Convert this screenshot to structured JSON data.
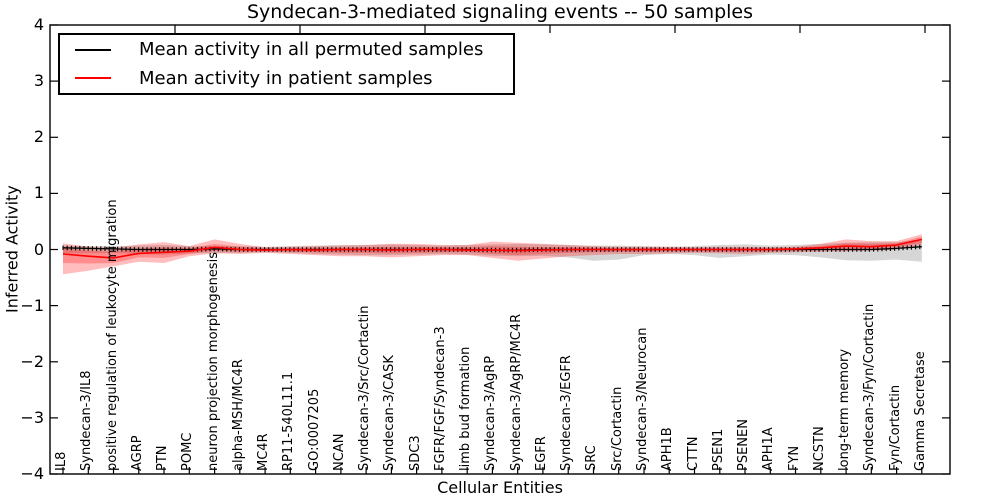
{
  "title": "Syndecan-3-mediated signaling events -- 50 samples",
  "legend": {
    "items": [
      {
        "label": "Mean activity in all permuted samples",
        "color": "#000000"
      },
      {
        "label": "Mean activity in patient samples",
        "color": "#ff0000"
      }
    ]
  },
  "axes": {
    "xlabel": "Cellular Entities",
    "ylabel": "Inferred Activity",
    "ytick_labels": [
      "4",
      "3",
      "2",
      "1",
      "0",
      "−1",
      "−2",
      "−3",
      "−4"
    ],
    "ytick_values": [
      4,
      3,
      2,
      1,
      0,
      -1,
      -2,
      -3,
      -4
    ]
  },
  "chart_data": {
    "type": "line",
    "title": "Syndecan-3-mediated signaling events -- 50 samples",
    "xlabel": "Cellular Entities",
    "ylabel": "Inferred Activity",
    "ylim": [
      -4,
      4
    ],
    "grid": false,
    "legend_position": "upper left",
    "x_tick_rotation": 90,
    "categories": [
      "IL8",
      "Syndecan-3/IL8",
      "positive regulation of leukocyte migration",
      "AGRP",
      "PTN",
      "POMC",
      "neuron projection morphogenesis",
      "alpha-MSH/MC4R",
      "MC4R",
      "RP11-540L11.1",
      "GO:0007205",
      "NCAN",
      "Syndecan-3/Src/Cortactin",
      "Syndecan-3/CASK",
      "SDC3",
      "FGFR/FGF/Syndecan-3",
      "limb bud formation",
      "Syndecan-3/AgRP",
      "Syndecan-3/AgRP/MC4R",
      "EGFR",
      "Syndecan-3/EGFR",
      "SRC",
      "Src/Cortactin",
      "Syndecan-3/Neurocan",
      "APH1B",
      "CTTN",
      "PSEN1",
      "PSENEN",
      "APH1A",
      "FYN",
      "NCSTN",
      "long-term memory",
      "Syndecan-3/Fyn/Cortactin",
      "Fyn/Cortactin",
      "Gamma Secretase"
    ],
    "series": [
      {
        "name": "Mean activity in all permuted samples",
        "color": "#000000",
        "values": [
          0.03,
          0.02,
          0.01,
          0.0,
          0.0,
          0.0,
          0.01,
          0.0,
          0.0,
          0.0,
          0.0,
          0.0,
          0.0,
          0.0,
          0.0,
          0.0,
          0.0,
          -0.01,
          -0.01,
          0.0,
          0.0,
          0.0,
          0.0,
          0.0,
          0.0,
          0.0,
          0.0,
          0.0,
          0.0,
          0.0,
          0.0,
          0.0,
          0.0,
          0.02,
          0.05
        ]
      },
      {
        "name": "Mean activity in patient samples",
        "color": "#ff0000",
        "values": [
          -0.08,
          -0.12,
          -0.15,
          -0.07,
          -0.05,
          -0.03,
          0.04,
          0.0,
          -0.01,
          0.0,
          -0.01,
          0.0,
          0.0,
          -0.01,
          0.0,
          0.0,
          -0.01,
          -0.01,
          -0.02,
          -0.01,
          0.0,
          0.0,
          0.0,
          0.0,
          0.0,
          0.0,
          0.0,
          0.0,
          0.0,
          0.01,
          0.03,
          0.06,
          0.05,
          0.08,
          0.18
        ]
      }
    ],
    "bands": [
      {
        "name": "permuted-samples-spread",
        "color": "#808080",
        "opacity": 0.32,
        "upper": [
          0.07,
          0.06,
          0.06,
          0.07,
          0.08,
          0.06,
          0.06,
          0.06,
          0.05,
          0.06,
          0.07,
          0.08,
          0.08,
          0.09,
          0.08,
          0.07,
          0.08,
          0.09,
          0.1,
          0.09,
          0.08,
          0.07,
          0.07,
          0.06,
          0.05,
          0.06,
          0.08,
          0.09,
          0.07,
          0.08,
          0.1,
          0.12,
          0.13,
          0.13,
          0.17
        ],
        "lower": [
          -0.07,
          -0.07,
          -0.06,
          -0.08,
          -0.09,
          -0.07,
          -0.06,
          -0.06,
          -0.05,
          -0.06,
          -0.08,
          -0.09,
          -0.1,
          -0.1,
          -0.09,
          -0.08,
          -0.09,
          -0.11,
          -0.12,
          -0.11,
          -0.14,
          -0.2,
          -0.18,
          -0.1,
          -0.08,
          -0.1,
          -0.15,
          -0.12,
          -0.09,
          -0.1,
          -0.14,
          -0.19,
          -0.2,
          -0.18,
          -0.22
        ]
      },
      {
        "name": "patient-samples-spread-outer",
        "color": "#ff0000",
        "opacity": 0.26,
        "upper": [
          0.11,
          0.05,
          0.03,
          0.09,
          0.13,
          0.06,
          0.18,
          0.1,
          0.04,
          0.05,
          0.06,
          0.07,
          0.08,
          0.1,
          0.1,
          0.08,
          0.08,
          0.14,
          0.12,
          0.1,
          0.08,
          0.06,
          0.05,
          0.05,
          0.05,
          0.04,
          0.05,
          0.05,
          0.04,
          0.05,
          0.1,
          0.18,
          0.15,
          0.15,
          0.27
        ],
        "lower": [
          -0.44,
          -0.38,
          -0.3,
          -0.22,
          -0.24,
          -0.12,
          -0.07,
          -0.08,
          -0.06,
          -0.08,
          -0.1,
          -0.12,
          -0.12,
          -0.14,
          -0.12,
          -0.1,
          -0.1,
          -0.15,
          -0.2,
          -0.16,
          -0.12,
          -0.1,
          -0.08,
          -0.08,
          -0.07,
          -0.06,
          -0.07,
          -0.08,
          -0.06,
          -0.05,
          -0.04,
          -0.03,
          -0.02,
          0.0,
          0.08
        ]
      },
      {
        "name": "patient-samples-spread-inner",
        "color": "#ff0000",
        "opacity": 0.25,
        "upper": [
          0.02,
          -0.02,
          -0.04,
          0.02,
          0.04,
          0.02,
          0.1,
          0.05,
          0.02,
          0.02,
          0.03,
          0.03,
          0.04,
          0.05,
          0.05,
          0.04,
          0.04,
          0.06,
          0.05,
          0.04,
          0.04,
          0.03,
          0.02,
          0.02,
          0.02,
          0.02,
          0.02,
          0.02,
          0.02,
          0.03,
          0.06,
          0.11,
          0.1,
          0.11,
          0.23
        ],
        "lower": [
          -0.24,
          -0.25,
          -0.24,
          -0.14,
          -0.15,
          -0.08,
          -0.02,
          -0.04,
          -0.03,
          -0.04,
          -0.05,
          -0.06,
          -0.06,
          -0.07,
          -0.06,
          -0.05,
          -0.05,
          -0.08,
          -0.1,
          -0.08,
          -0.06,
          -0.05,
          -0.04,
          -0.04,
          -0.03,
          -0.03,
          -0.04,
          -0.04,
          -0.03,
          -0.02,
          -0.01,
          0.01,
          0.01,
          0.04,
          0.12
        ]
      }
    ]
  }
}
